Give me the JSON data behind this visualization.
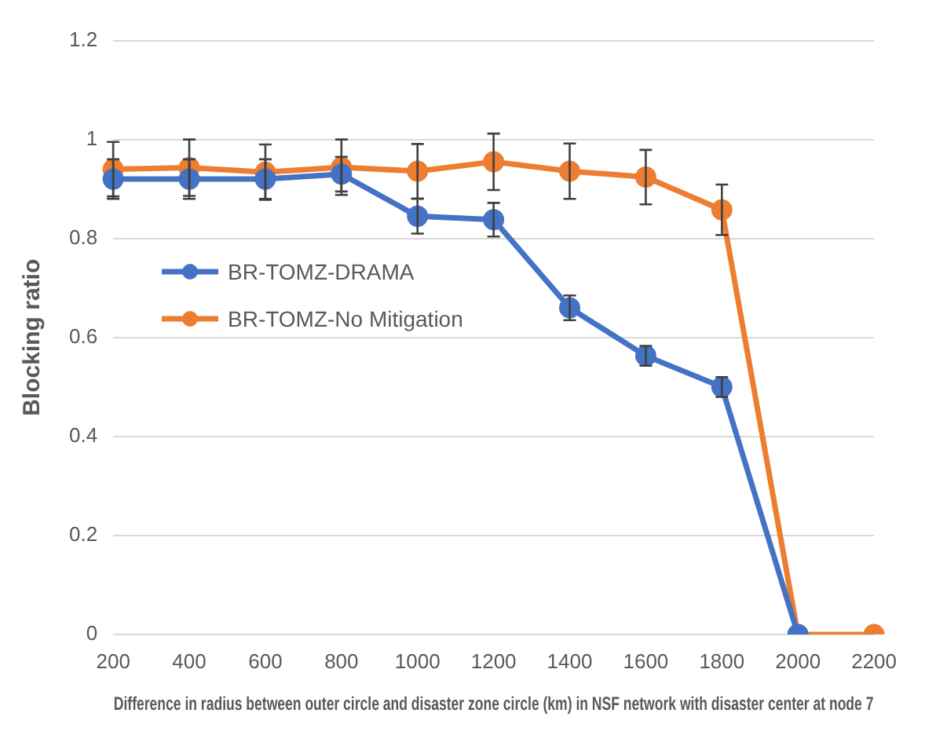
{
  "chart_data": {
    "type": "line",
    "xlabel": "Difference in radius between outer circle and disaster zone circle (km) in NSF network with disaster center at node 7",
    "ylabel": "Blocking ratio",
    "categories": [
      "200",
      "400",
      "600",
      "800",
      "1000",
      "1200",
      "1400",
      "1600",
      "1800",
      "2000",
      "2200"
    ],
    "series": [
      {
        "name": "BR-TOMZ-DRAMA",
        "color": "#4472c4",
        "values": [
          0.92,
          0.92,
          0.92,
          0.93,
          0.845,
          0.838,
          0.66,
          0.563,
          0.5,
          0,
          null
        ],
        "errors": [
          0.04,
          0.04,
          0.04,
          0.035,
          0.035,
          0.034,
          0.025,
          0.02,
          0.02,
          null,
          null
        ]
      },
      {
        "name": "BR-TOMZ-No Mitigation",
        "color": "#ed7d31",
        "values": [
          0.94,
          0.943,
          0.934,
          0.944,
          0.936,
          0.955,
          0.936,
          0.924,
          0.858,
          0,
          0
        ],
        "errors": [
          0.055,
          0.057,
          0.056,
          0.056,
          0.055,
          0.057,
          0.056,
          0.055,
          0.051,
          null,
          null
        ]
      }
    ],
    "ylim": [
      0,
      1.2
    ],
    "yticks": [
      0,
      0.2,
      0.4,
      0.6,
      0.8,
      1,
      1.2
    ],
    "grid": "y",
    "legend": "left",
    "marker": "circle",
    "line_style": "solid"
  }
}
